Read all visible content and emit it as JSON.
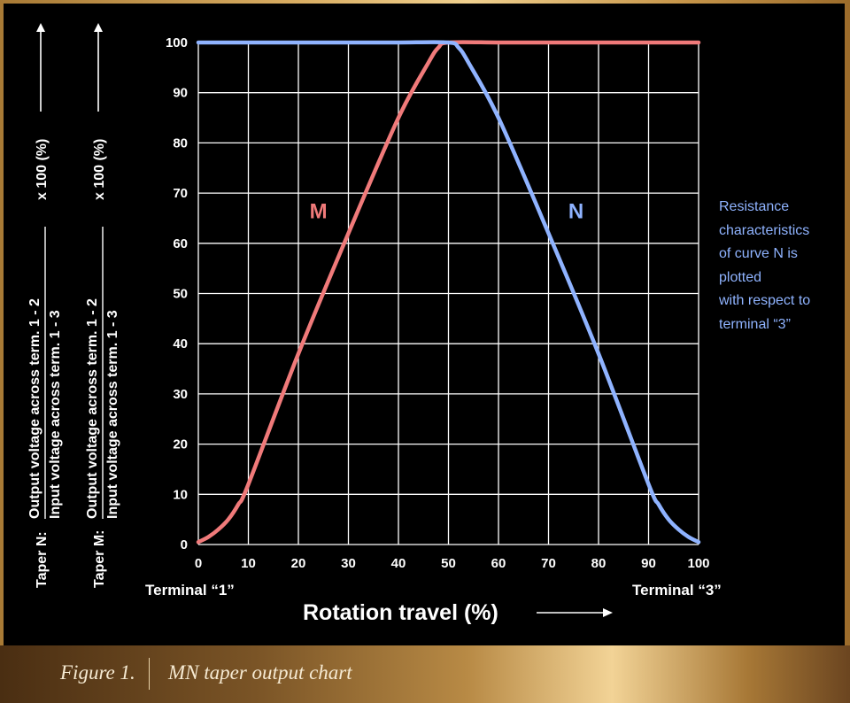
{
  "chart_data": {
    "type": "line",
    "x_range": [
      0,
      100
    ],
    "y_range": [
      0,
      100
    ],
    "x_ticks": [
      0,
      10,
      20,
      30,
      40,
      50,
      60,
      70,
      80,
      90,
      100
    ],
    "y_ticks": [
      0,
      10,
      20,
      30,
      40,
      50,
      60,
      70,
      80,
      90,
      100
    ],
    "grid": true,
    "xlabel": "Rotation travel (%)",
    "x_end_labels": {
      "left": "Terminal “1”",
      "right": "Terminal “3”"
    },
    "ylabels": [
      {
        "prefix": "Taper N:",
        "numerator": "Output voltage across term. 1 - 2",
        "denominator": "Input voltage across term. 1 - 3",
        "suffix": "x 100 (%)"
      },
      {
        "prefix": "Taper M:",
        "numerator": "Output voltage across term. 1 - 2",
        "denominator": "Input voltage across term. 1 - 3",
        "suffix": "x 100 (%)"
      }
    ],
    "series": [
      {
        "name": "M",
        "color": "#f07a7a",
        "x": [
          0,
          2,
          4,
          6,
          8,
          10,
          20,
          30,
          40,
          46,
          48,
          50,
          60,
          70,
          80,
          90,
          100
        ],
        "y": [
          0.5,
          1.5,
          3,
          5,
          8,
          12,
          38,
          62,
          85,
          96,
          99,
          100,
          100,
          100,
          100,
          100,
          100
        ]
      },
      {
        "name": "N",
        "color": "#8fb3ff",
        "x": [
          0,
          10,
          20,
          30,
          40,
          50,
          52,
          54,
          60,
          70,
          80,
          90,
          92,
          94,
          96,
          98,
          100
        ],
        "y": [
          100,
          100,
          100,
          100,
          100,
          100,
          99,
          96,
          85,
          62,
          38,
          12,
          8,
          5,
          3,
          1.5,
          0.5
        ]
      }
    ],
    "annotation": [
      "Resistance",
      "characteristics",
      "of curve N is",
      "plotted",
      "with respect to",
      "terminal “3”"
    ]
  },
  "caption": {
    "figure_number": "Figure 1.",
    "title": "MN taper output chart"
  }
}
